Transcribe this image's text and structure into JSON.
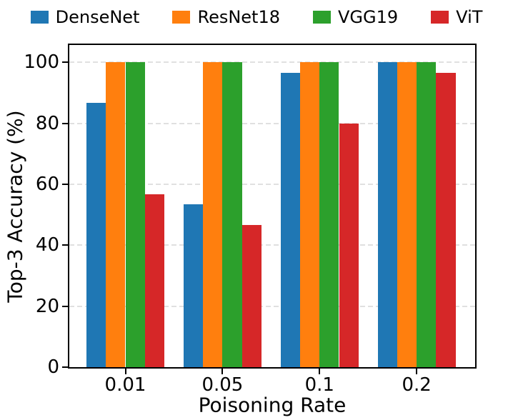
{
  "figure": {
    "background": "#ffffff",
    "text_color": "#000000",
    "spine_color": "#000000",
    "grid_color": "#e0e0e0"
  },
  "legend": {
    "items": [
      {
        "label": "DenseNet",
        "color": "#1f77b4",
        "swatch_icon": "blue-square-swatch"
      },
      {
        "label": "ResNet18",
        "color": "#ff7f0e",
        "swatch_icon": "orange-square-swatch"
      },
      {
        "label": "VGG19",
        "color": "#2ca02c",
        "swatch_icon": "green-square-swatch"
      },
      {
        "label": "ViT",
        "color": "#d62728",
        "swatch_icon": "red-square-swatch"
      }
    ]
  },
  "chart_data": {
    "type": "bar",
    "title": "",
    "xlabel": "Poisoning Rate",
    "ylabel": "Top-3 Accuracy (%)",
    "categories": [
      "0.01",
      "0.05",
      "0.1",
      "0.2"
    ],
    "series": [
      {
        "name": "DenseNet",
        "color": "#1f77b4",
        "values": [
          86.67,
          53.33,
          96.67,
          100
        ]
      },
      {
        "name": "ResNet18",
        "color": "#ff7f0e",
        "values": [
          100,
          100,
          100,
          100
        ]
      },
      {
        "name": "VGG19",
        "color": "#2ca02c",
        "values": [
          100,
          100,
          100,
          100
        ]
      },
      {
        "name": "ViT",
        "color": "#d62728",
        "values": [
          56.67,
          46.67,
          80,
          96.67
        ]
      }
    ],
    "yticks": [
      0,
      20,
      40,
      60,
      80,
      100
    ],
    "ylim": [
      0,
      105.7
    ],
    "grid": "horizontal-dashed",
    "legend_position": "top",
    "bar_group_fraction": 0.8
  }
}
